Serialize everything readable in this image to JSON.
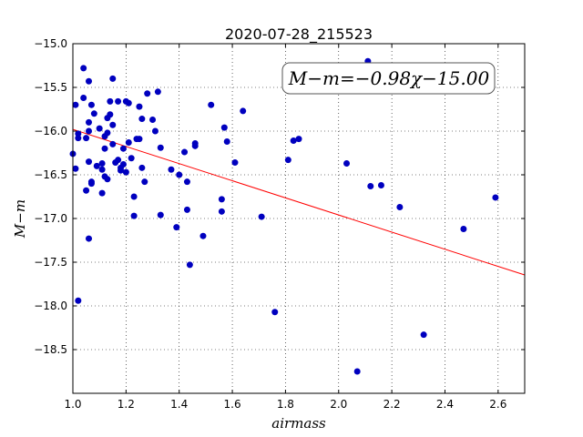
{
  "chart_data": {
    "type": "scatter",
    "title": "2020-07-28_215523",
    "xlabel": "airmass",
    "ylabel": "M−m",
    "xlim": [
      1.0,
      2.7
    ],
    "ylim": [
      -19.0,
      -15.0
    ],
    "y_inverted": true,
    "x_ticks": [
      1.0,
      1.2,
      1.4,
      1.6,
      1.8,
      2.0,
      2.2,
      2.4,
      2.6
    ],
    "x_tick_labels": [
      "1.0",
      "1.2",
      "1.4",
      "1.6",
      "1.8",
      "2.0",
      "2.2",
      "2.4",
      "2.6"
    ],
    "y_ticks": [
      -15.0,
      -15.5,
      -16.0,
      -16.5,
      -17.0,
      -17.5,
      -18.0,
      -18.5
    ],
    "y_tick_labels": [
      "−15.0",
      "−15.5",
      "−16.0",
      "−16.5",
      "−17.0",
      "−17.5",
      "−18.0",
      "−18.5"
    ],
    "grid": true,
    "annotation": "M−m=−0.98χ−15.00",
    "fit_line": {
      "slope": -0.98,
      "intercept": -15.0,
      "color": "#ff0000"
    },
    "point_color": "#0000bf",
    "points": [
      [
        1.0,
        -16.26
      ],
      [
        1.01,
        -16.43
      ],
      [
        1.01,
        -15.7
      ],
      [
        1.02,
        -16.03
      ],
      [
        1.02,
        -16.08
      ],
      [
        1.02,
        -17.94
      ],
      [
        1.04,
        -15.62
      ],
      [
        1.04,
        -15.28
      ],
      [
        1.05,
        -16.08
      ],
      [
        1.05,
        -16.68
      ],
      [
        1.06,
        -15.9
      ],
      [
        1.06,
        -15.43
      ],
      [
        1.06,
        -16.0
      ],
      [
        1.06,
        -16.35
      ],
      [
        1.06,
        -17.23
      ],
      [
        1.07,
        -15.7
      ],
      [
        1.07,
        -16.58
      ],
      [
        1.07,
        -16.6
      ],
      [
        1.08,
        -15.8
      ],
      [
        1.09,
        -16.4
      ],
      [
        1.1,
        -15.97
      ],
      [
        1.11,
        -16.37
      ],
      [
        1.11,
        -16.44
      ],
      [
        1.11,
        -16.71
      ],
      [
        1.12,
        -16.06
      ],
      [
        1.12,
        -16.2
      ],
      [
        1.12,
        -16.52
      ],
      [
        1.13,
        -15.85
      ],
      [
        1.13,
        -16.02
      ],
      [
        1.13,
        -16.55
      ],
      [
        1.14,
        -15.66
      ],
      [
        1.14,
        -15.81
      ],
      [
        1.15,
        -15.4
      ],
      [
        1.15,
        -15.93
      ],
      [
        1.15,
        -16.15
      ],
      [
        1.16,
        -16.36
      ],
      [
        1.17,
        -16.33
      ],
      [
        1.17,
        -15.66
      ],
      [
        1.18,
        -16.42
      ],
      [
        1.18,
        -16.45
      ],
      [
        1.19,
        -16.2
      ],
      [
        1.19,
        -16.38
      ],
      [
        1.2,
        -16.47
      ],
      [
        1.2,
        -15.66
      ],
      [
        1.21,
        -15.68
      ],
      [
        1.21,
        -16.13
      ],
      [
        1.22,
        -16.31
      ],
      [
        1.23,
        -16.75
      ],
      [
        1.23,
        -16.97
      ],
      [
        1.24,
        -16.09
      ],
      [
        1.25,
        -16.09
      ],
      [
        1.25,
        -15.72
      ],
      [
        1.26,
        -16.42
      ],
      [
        1.26,
        -15.86
      ],
      [
        1.27,
        -16.58
      ],
      [
        1.28,
        -15.57
      ],
      [
        1.3,
        -15.87
      ],
      [
        1.31,
        -16.0
      ],
      [
        1.32,
        -15.55
      ],
      [
        1.33,
        -16.19
      ],
      [
        1.33,
        -16.96
      ],
      [
        1.37,
        -16.44
      ],
      [
        1.39,
        -17.1
      ],
      [
        1.4,
        -16.5
      ],
      [
        1.42,
        -16.24
      ],
      [
        1.43,
        -16.9
      ],
      [
        1.43,
        -16.58
      ],
      [
        1.44,
        -17.53
      ],
      [
        1.46,
        -16.14
      ],
      [
        1.46,
        -16.17
      ],
      [
        1.49,
        -17.2
      ],
      [
        1.52,
        -15.7
      ],
      [
        1.56,
        -16.92
      ],
      [
        1.56,
        -16.78
      ],
      [
        1.57,
        -15.96
      ],
      [
        1.58,
        -16.12
      ],
      [
        1.61,
        -16.36
      ],
      [
        1.64,
        -15.77
      ],
      [
        1.71,
        -16.98
      ],
      [
        1.76,
        -18.07
      ],
      [
        1.81,
        -16.33
      ],
      [
        1.83,
        -16.11
      ],
      [
        1.85,
        -16.09
      ],
      [
        2.03,
        -16.37
      ],
      [
        2.07,
        -18.75
      ],
      [
        2.11,
        -15.2
      ],
      [
        2.12,
        -16.63
      ],
      [
        2.16,
        -16.62
      ],
      [
        2.23,
        -16.87
      ],
      [
        2.32,
        -18.33
      ],
      [
        2.47,
        -17.12
      ],
      [
        2.59,
        -16.76
      ]
    ]
  }
}
